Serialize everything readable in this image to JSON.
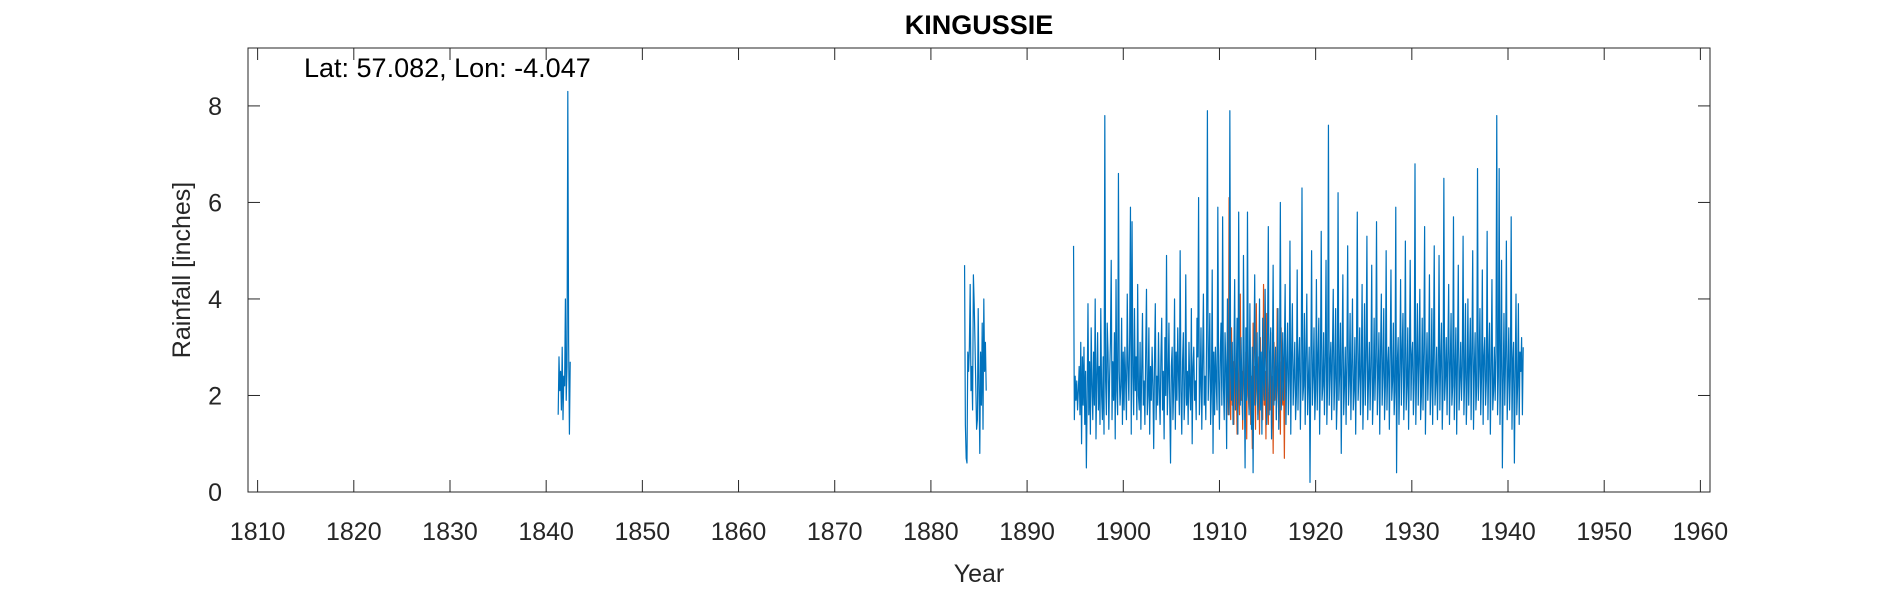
{
  "chart_data": {
    "type": "line",
    "title": "KINGUSSIE",
    "xlabel": "Year",
    "ylabel": "Rainfall [inches]",
    "annotation": "Lat: 57.082, Lon: -4.047",
    "xlim": [
      1809,
      1961
    ],
    "ylim": [
      0,
      9.2
    ],
    "xticks": [
      1810,
      1820,
      1830,
      1840,
      1850,
      1860,
      1870,
      1880,
      1890,
      1900,
      1910,
      1920,
      1930,
      1940,
      1950,
      1960
    ],
    "yticks": [
      0,
      2,
      4,
      6,
      8
    ],
    "grid": false,
    "colors": {
      "primary": "#0072BD",
      "secondary": "#D95319",
      "axis": "#262626"
    },
    "series": [
      {
        "segments": [
          {
            "start": 1841.25,
            "step": 0.0833333,
            "values": [
              1.6,
              2.8,
              2.1,
              2.5,
              1.7,
              3.0,
              1.5,
              2.4,
              2.2,
              4.0,
              1.9,
              2.6,
              8.3,
              3.1,
              1.2,
              2.7
            ]
          },
          {
            "start": 1883.5,
            "step": 0.0833333,
            "values": [
              4.7,
              1.4,
              0.7,
              0.6,
              2.9,
              2.5,
              3.0,
              4.3,
              2.1,
              2.6,
              1.7,
              4.5,
              3.9,
              3.1,
              2.2,
              1.3,
              1.5,
              3.8,
              2.2,
              0.8,
              2.9,
              1.8,
              3.5,
              1.3,
              4.0,
              2.5,
              3.1,
              2.1
            ]
          },
          {
            "start": 1894.83,
            "step": 0.0833333,
            "values": [
              5.1,
              1.5,
              2.4,
              1.9,
              2.3,
              1.7,
              2.1,
              2.6,
              1.6,
              3.1,
              1.0,
              2.8,
              1.8,
              3.0,
              1.4,
              2.5,
              0.5,
              2.0,
              3.9,
              1.6,
              2.7,
              1.2,
              3.4,
              2.2,
              1.5,
              2.9,
              1.8,
              4.0,
              1.1,
              2.4,
              3.3,
              1.7,
              2.6,
              1.4,
              3.8,
              2.0,
              1.5,
              2.8,
              1.2,
              7.8,
              2.3,
              1.6,
              3.5,
              2.9,
              1.3,
              2.4,
              3.1,
              4.8,
              1.5,
              2.7,
              1.9,
              3.3,
              1.1,
              4.4,
              2.1,
              1.6,
              6.6,
              2.5,
              1.8,
              2.2,
              3.6,
              1.4,
              2.9,
              1.7,
              3.0,
              2.3,
              1.5,
              4.1,
              2.6,
              1.9,
              3.2,
              5.9,
              1.2,
              5.6,
              2.4,
              1.6,
              3.8,
              2.1,
              2.8,
              1.5,
              4.3,
              2.0,
              1.7,
              3.1,
              1.3,
              2.5,
              3.7,
              1.8,
              2.3,
              1.4,
              2.9,
              4.2,
              1.6,
              2.0,
              3.4,
              1.2,
              2.6,
              1.9,
              3.0,
              2.2,
              0.9,
              2.7,
              3.9,
              1.5,
              2.4,
              1.8,
              3.3,
              2.1,
              1.4,
              2.8,
              3.6,
              1.7,
              2.5,
              1.1,
              3.2,
              2.0,
              4.9,
              1.6,
              2.3,
              3.5,
              1.8,
              0.6,
              2.6,
              3.0,
              1.5,
              2.2,
              4.0,
              1.3,
              2.9,
              1.9,
              3.4,
              2.4,
              1.6,
              5.0,
              2.1,
              1.2,
              2.7,
              3.3,
              1.5,
              2.0,
              4.5,
              1.8,
              2.5,
              1.4,
              3.1,
              2.2,
              1.7,
              3.8,
              1.0,
              2.6,
              3.0,
              1.9,
              2.3,
              1.5,
              3.6,
              2.8,
              6.1,
              1.6,
              2.2,
              3.4,
              1.3,
              2.7,
              4.1,
              1.8,
              2.4,
              1.5,
              3.2,
              7.9,
              1.9,
              2.6,
              3.7,
              1.4,
              2.1,
              4.6,
              0.8,
              2.9,
              1.6,
              3.0,
              2.3,
              1.7,
              5.9,
              2.4,
              1.3,
              2.8,
              3.5,
              1.8,
              5.7,
              2.2,
              1.5,
              3.3,
              2.6,
              0.9,
              4.0,
              2.0,
              1.6,
              7.9,
              2.5,
              1.9,
              3.1,
              1.4,
              2.7,
              4.4,
              1.7,
              2.3,
              3.6,
              1.2,
              5.8,
              2.8,
              1.8,
              3.2,
              2.1,
              1.5,
              4.9,
              2.6,
              0.5,
              3.4,
              1.9,
              5.8,
              2.4,
              1.6,
              3.9,
              2.2,
              1.3,
              3.0,
              0.4,
              2.7,
              4.5,
              1.8,
              2.5,
              3.3,
              1.5,
              2.1,
              4.0,
              1.7,
              2.9,
              1.2,
              3.6,
              2.3,
              1.9,
              4.2,
              2.6,
              1.4,
              3.1,
              5.5,
              1.6,
              2.8,
              3.4,
              1.1,
              2.4,
              4.7,
              1.8,
              2.2,
              3.0,
              1.5,
              2.7,
              3.8,
              1.3,
              2.5,
              6.0,
              1.7,
              2.1,
              3.3,
              1.9,
              2.9,
              4.3,
              1.4,
              2.6,
              3.5,
              1.6,
              2.3,
              5.2,
              1.2,
              2.8,
              3.9,
              1.8,
              2.4,
              3.1,
              1.5,
              2.0,
              4.6,
              1.7,
              2.7,
              3.2,
              1.3,
              2.5,
              6.3,
              1.9,
              2.2,
              3.7,
              1.4,
              2.9,
              4.1,
              1.6,
              2.3,
              3.0,
              0.2,
              2.6,
              5.0,
              1.8,
              2.4,
              3.4,
              1.5,
              2.1,
              4.4,
              1.7,
              2.8,
              3.6,
              1.2,
              2.5,
              5.4,
              1.9,
              2.2,
              3.3,
              1.6,
              2.7,
              4.8,
              1.4,
              2.3,
              7.6,
              1.8,
              2.6,
              3.1,
              1.5,
              2.9,
              4.2,
              1.7,
              2.4,
              3.8,
              1.3,
              2.0,
              6.2,
              1.9,
              2.5,
              3.5,
              0.8,
              2.8,
              4.5,
              1.6,
              2.2,
              3.0,
              1.4,
              2.7,
              5.1,
              1.8,
              2.3,
              3.7,
              1.5,
              2.6,
              4.0,
              1.7,
              2.1,
              3.2,
              1.2,
              2.9,
              5.8,
              1.9,
              2.4,
              3.4,
              1.6,
              2.5,
              4.3,
              1.3,
              2.2,
              3.9,
              1.8,
              2.8,
              5.3,
              1.5,
              2.3,
              3.1,
              1.7,
              2.6,
              4.7,
              1.4,
              2.0,
              3.6,
              1.9,
              2.7,
              5.6,
              1.6,
              2.4,
              3.3,
              1.2,
              2.9,
              4.1,
              1.8,
              2.5,
              3.8,
              1.5,
              2.2,
              5.0,
              1.7,
              2.6,
              3.0,
              1.3,
              2.8,
              4.6,
              1.9,
              2.3,
              3.5,
              1.6,
              2.1,
              5.9,
              0.4,
              2.7,
              3.2,
              1.4,
              2.5,
              4.4,
              1.8,
              2.9,
              3.7,
              1.5,
              2.4,
              5.2,
              1.7,
              2.2,
              3.4,
              1.3,
              2.6,
              4.8,
              1.9,
              2.8,
              3.1,
              1.6,
              2.3,
              6.8,
              1.4,
              2.5,
              3.9,
              1.8,
              2.7,
              4.2,
              1.5,
              2.0,
              3.6,
              1.7,
              2.9,
              5.5,
              1.2,
              2.4,
              3.3,
              1.9,
              2.6,
              4.5,
              1.6,
              2.2,
              3.8,
              1.4,
              2.8,
              5.1,
              1.8,
              2.3,
              3.0,
              1.5,
              2.5,
              4.9,
              1.7,
              2.7,
              3.5,
              1.3,
              2.1,
              6.5,
              1.9,
              2.4,
              3.2,
              1.6,
              2.9,
              4.3,
              1.4,
              2.6,
              3.7,
              1.8,
              2.2,
              5.7,
              1.5,
              2.5,
              3.4,
              1.2,
              2.8,
              4.7,
              1.7,
              2.3,
              3.1,
              1.9,
              2.6,
              5.3,
              1.6,
              2.4,
              3.9,
              1.4,
              2.1,
              4.0,
              1.8,
              2.7,
              3.6,
              1.5,
              2.9,
              5.0,
              1.3,
              2.5,
              3.3,
              1.7,
              2.2,
              6.7,
              1.9,
              2.6,
              3.8,
              1.6,
              2.4,
              4.6,
              1.4,
              2.8,
              3.2,
              1.8,
              2.3,
              5.4,
              1.5,
              2.7,
              3.5,
              1.2,
              2.5,
              4.4,
              1.7,
              2.1,
              3.0,
              1.9,
              2.9,
              7.8,
              1.6,
              2.4,
              6.7,
              1.4,
              2.6,
              4.8,
              0.5,
              2.2,
              3.7,
              1.8,
              2.8,
              5.2,
              1.5,
              2.3,
              3.4,
              1.7,
              2.5,
              5.7,
              1.3,
              2.7,
              3.1,
              0.6,
              2.4,
              4.1,
              1.6,
              2.2,
              3.9,
              1.4,
              2.9,
              2.5,
              3.2,
              1.6,
              3.0
            ]
          }
        ]
      },
      {
        "segments": [
          {
            "start": 1910.75,
            "step": 0.0833333,
            "values": [
              2.4,
              3.1,
              1.6,
              6.1,
              2.0,
              1.5,
              3.4,
              1.8,
              2.7,
              1.4,
              3.8,
              1.7,
              2.3,
              1.2,
              3.0,
              2.1,
              1.6,
              4.1,
              1.9,
              2.5,
              1.3,
              3.3,
              2.2,
              1.5,
              2.9,
              1.1,
              3.6,
              2.0,
              1.7,
              3.1,
              1.4,
              2.4,
              0.9,
              3.5,
              1.8,
              2.6,
              1.3,
              3.9,
              2.1,
              1.6,
              2.8,
              1.2,
              3.2,
              1.9,
              2.3,
              1.5,
              4.3,
              1.8,
              2.5,
              1.1,
              3.7,
              2.0,
              1.4,
              2.9,
              1.7,
              3.3,
              1.3,
              2.4,
              0.8,
              3.1,
              1.9,
              2.6,
              1.5,
              3.8,
              2.2,
              1.6,
              2.7,
              1.2,
              3.4,
              2.0,
              1.8,
              2.5,
              0.7,
              2.9
            ]
          }
        ]
      }
    ]
  }
}
